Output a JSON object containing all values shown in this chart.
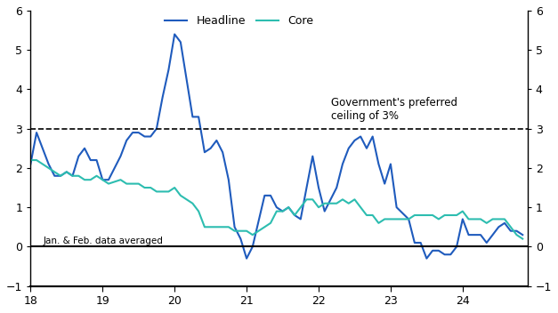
{
  "headline_color": "#1f5bbd",
  "core_color": "#2dbdb0",
  "ylim": [
    -1,
    6
  ],
  "yticks": [
    -1,
    0,
    1,
    2,
    3,
    4,
    5,
    6
  ],
  "ceiling_value": 3,
  "ceiling_label": "Government's preferred\nceiling of 3%",
  "note_label": "Jan. & Feb. data averaged",
  "legend_labels": [
    "Headline",
    "Core"
  ],
  "headline": {
    "x": [
      2018.0,
      2018.083,
      2018.25,
      2018.333,
      2018.417,
      2018.5,
      2018.583,
      2018.667,
      2018.75,
      2018.833,
      2018.917,
      2019.0,
      2019.083,
      2019.25,
      2019.333,
      2019.417,
      2019.5,
      2019.583,
      2019.667,
      2019.75,
      2019.833,
      2019.917,
      2020.0,
      2020.083,
      2020.25,
      2020.333,
      2020.417,
      2020.5,
      2020.583,
      2020.667,
      2020.75,
      2020.833,
      2020.917,
      2021.0,
      2021.083,
      2021.25,
      2021.333,
      2021.417,
      2021.5,
      2021.583,
      2021.667,
      2021.75,
      2021.833,
      2021.917,
      2022.0,
      2022.083,
      2022.25,
      2022.333,
      2022.417,
      2022.5,
      2022.583,
      2022.667,
      2022.75,
      2022.833,
      2022.917,
      2023.0,
      2023.083,
      2023.25,
      2023.333,
      2023.417,
      2023.5,
      2023.583,
      2023.667,
      2023.75,
      2023.833,
      2023.917,
      2024.0,
      2024.083,
      2024.25,
      2024.333,
      2024.417,
      2024.5,
      2024.583,
      2024.667,
      2024.75,
      2024.833
    ],
    "y": [
      2.1,
      2.9,
      2.1,
      1.8,
      1.8,
      1.9,
      1.8,
      2.3,
      2.5,
      2.2,
      2.2,
      1.7,
      1.7,
      2.3,
      2.7,
      2.9,
      2.9,
      2.8,
      2.8,
      3.0,
      3.8,
      4.5,
      5.4,
      5.2,
      3.3,
      3.3,
      2.4,
      2.5,
      2.7,
      2.4,
      1.7,
      0.5,
      0.2,
      -0.3,
      0.0,
      1.3,
      1.3,
      1.0,
      0.9,
      1.0,
      0.8,
      0.7,
      1.5,
      2.3,
      1.5,
      0.9,
      1.5,
      2.1,
      2.5,
      2.7,
      2.8,
      2.5,
      2.8,
      2.1,
      1.6,
      2.1,
      1.0,
      0.7,
      0.1,
      0.1,
      -0.3,
      -0.1,
      -0.1,
      -0.2,
      -0.2,
      0.0,
      0.7,
      0.3,
      0.3,
      0.1,
      0.3,
      0.5,
      0.6,
      0.4,
      0.4,
      0.3
    ]
  },
  "core": {
    "x": [
      2018.0,
      2018.083,
      2018.25,
      2018.333,
      2018.417,
      2018.5,
      2018.583,
      2018.667,
      2018.75,
      2018.833,
      2018.917,
      2019.0,
      2019.083,
      2019.25,
      2019.333,
      2019.417,
      2019.5,
      2019.583,
      2019.667,
      2019.75,
      2019.833,
      2019.917,
      2020.0,
      2020.083,
      2020.25,
      2020.333,
      2020.417,
      2020.5,
      2020.583,
      2020.667,
      2020.75,
      2020.833,
      2020.917,
      2021.0,
      2021.083,
      2021.25,
      2021.333,
      2021.417,
      2021.5,
      2021.583,
      2021.667,
      2021.75,
      2021.833,
      2021.917,
      2022.0,
      2022.083,
      2022.25,
      2022.333,
      2022.417,
      2022.5,
      2022.583,
      2022.667,
      2022.75,
      2022.833,
      2022.917,
      2023.0,
      2023.083,
      2023.25,
      2023.333,
      2023.417,
      2023.5,
      2023.583,
      2023.667,
      2023.75,
      2023.833,
      2023.917,
      2024.0,
      2024.083,
      2024.25,
      2024.333,
      2024.417,
      2024.5,
      2024.583,
      2024.667,
      2024.75,
      2024.833
    ],
    "y": [
      2.2,
      2.2,
      2.0,
      1.9,
      1.8,
      1.9,
      1.8,
      1.8,
      1.7,
      1.7,
      1.8,
      1.7,
      1.6,
      1.7,
      1.6,
      1.6,
      1.6,
      1.5,
      1.5,
      1.4,
      1.4,
      1.4,
      1.5,
      1.3,
      1.1,
      0.9,
      0.5,
      0.5,
      0.5,
      0.5,
      0.5,
      0.4,
      0.4,
      0.4,
      0.3,
      0.5,
      0.6,
      0.9,
      0.9,
      1.0,
      0.8,
      1.0,
      1.2,
      1.2,
      1.0,
      1.1,
      1.1,
      1.2,
      1.1,
      1.2,
      1.0,
      0.8,
      0.8,
      0.6,
      0.7,
      0.7,
      0.7,
      0.7,
      0.8,
      0.8,
      0.8,
      0.8,
      0.7,
      0.8,
      0.8,
      0.8,
      0.9,
      0.7,
      0.7,
      0.6,
      0.7,
      0.7,
      0.7,
      0.5,
      0.3,
      0.2
    ]
  }
}
